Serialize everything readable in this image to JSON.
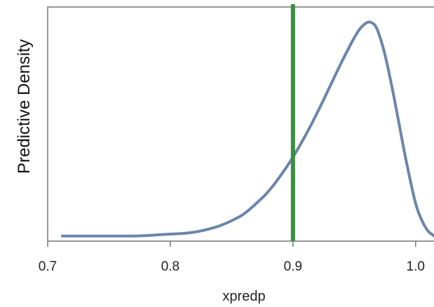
{
  "chart_data": {
    "type": "line",
    "xlabel": "xpredp",
    "ylabel": "Predictive Density",
    "xlim": [
      0.7,
      1.015
    ],
    "ylim": [
      0,
      1
    ],
    "y_tick_labels_shown": false,
    "x_ticks": [
      0.7,
      0.8,
      0.9,
      1.0
    ],
    "x_tick_labels": [
      "0.7",
      "0.8",
      "0.9",
      "1.0"
    ],
    "grid": false,
    "series": [
      {
        "color": "#6b85aa",
        "x": [
          0.712,
          0.73,
          0.75,
          0.77,
          0.78,
          0.79,
          0.8,
          0.81,
          0.82,
          0.83,
          0.84,
          0.85,
          0.86,
          0.87,
          0.88,
          0.89,
          0.9,
          0.91,
          0.92,
          0.93,
          0.94,
          0.945,
          0.95,
          0.955,
          0.96,
          0.963,
          0.967,
          0.97,
          0.975,
          0.98,
          0.985,
          0.99,
          0.995,
          1.0,
          1.005,
          1.01,
          1.015
        ],
        "y": [
          0.004,
          0.004,
          0.004,
          0.004,
          0.006,
          0.01,
          0.013,
          0.016,
          0.022,
          0.034,
          0.05,
          0.075,
          0.105,
          0.155,
          0.21,
          0.285,
          0.37,
          0.47,
          0.58,
          0.7,
          0.82,
          0.875,
          0.93,
          0.975,
          1.0,
          1.003,
          0.99,
          0.95,
          0.855,
          0.72,
          0.575,
          0.42,
          0.28,
          0.15,
          0.075,
          0.025,
          0.005
        ]
      }
    ],
    "reference_line": {
      "x": 0.9,
      "color": "#3a8f3e"
    }
  },
  "colors": {
    "axis": "#777777",
    "curve": "#6b85aa",
    "refline": "#3a8f3e"
  }
}
